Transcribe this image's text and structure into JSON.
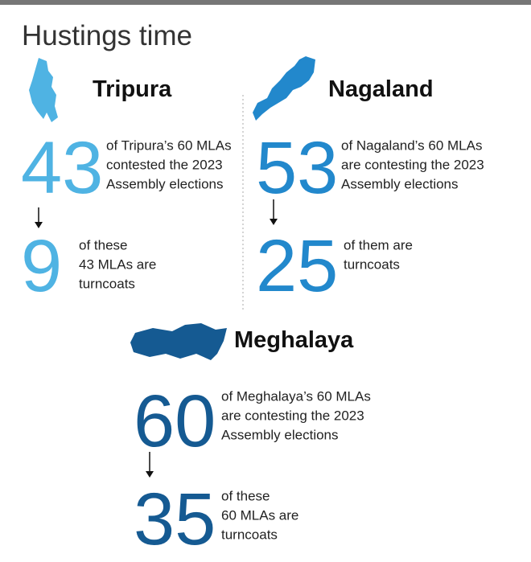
{
  "title": "Hustings time",
  "states": [
    {
      "name": "Tripura",
      "stats": [
        {
          "number": 43,
          "lines": [
            "of Tripura’s 60 MLAs",
            "contested the 2023",
            "Assembly elections"
          ]
        },
        {
          "number": 9,
          "lines": [
            "of these",
            "43 MLAs are",
            "turncoats"
          ]
        }
      ]
    },
    {
      "name": "Nagaland",
      "stats": [
        {
          "number": 53,
          "lines": [
            "of Nagaland’s 60 MLAs",
            "are contesting the 2023",
            "Assembly elections"
          ]
        },
        {
          "number": 25,
          "lines": [
            "of them are",
            "turncoats"
          ]
        }
      ]
    },
    {
      "name": "Meghalaya",
      "stats": [
        {
          "number": 60,
          "lines": [
            "of Meghalaya’s 60 MLAs",
            "are contesting the 2023",
            "Assembly elections"
          ]
        },
        {
          "number": 35,
          "lines": [
            "of these",
            "60 MLAs are",
            "turncoats"
          ]
        }
      ]
    }
  ]
}
